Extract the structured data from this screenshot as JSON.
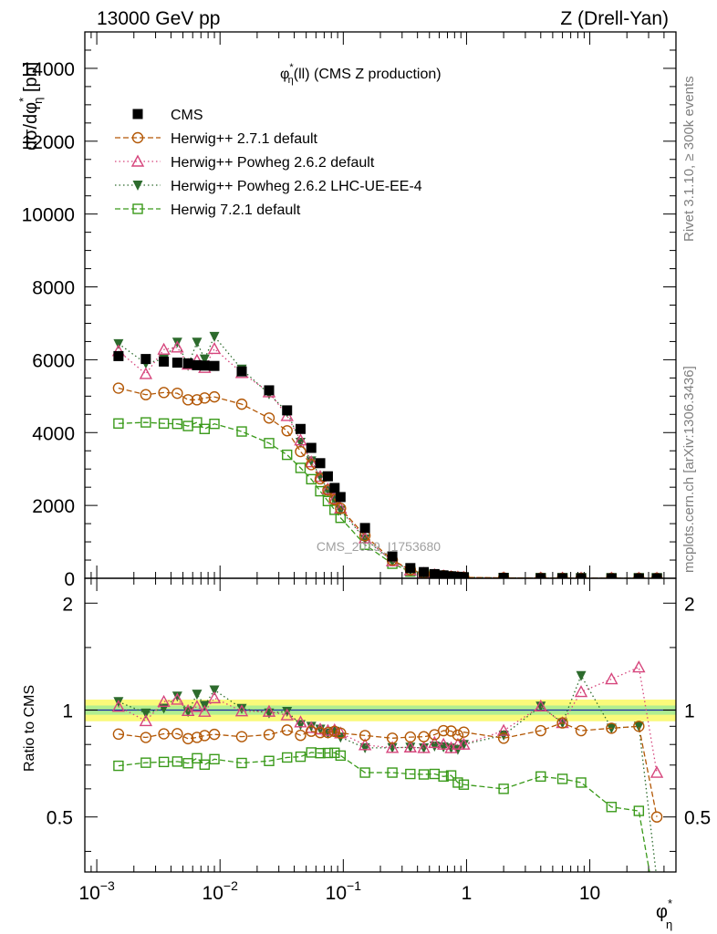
{
  "chart_data": {
    "type": "scatter",
    "header_left": "13000 GeV pp",
    "header_right": "Z (Drell-Yan)",
    "title": "φ*η(ll) (CMS Z production)",
    "title_parts": {
      "phi": "φ",
      "sup": "*",
      "sub": "η",
      "rest": "(ll) (CMS Z production)"
    },
    "ylabel_main": "dσ/dφ*η [pb]",
    "ylabel_main_parts": {
      "pre": "dσ/dφ",
      "sup": "*",
      "sub": "η",
      "post": " [pb]"
    },
    "ylabel_ratio": "Ratio to CMS",
    "xlabel": "φ*η",
    "xlabel_parts": {
      "phi": "φ",
      "sup": "*",
      "sub": "η"
    },
    "watermark": "CMS_2019_I1753680",
    "side_top": "Rivet 3.1.10, ≥ 300k events",
    "side_bottom": "mcplots.cern.ch [arXiv:1306.3436]",
    "xscale": "log",
    "xlim": [
      0.0008,
      50
    ],
    "ylim_main": [
      0,
      15000
    ],
    "ylim_ratio": [
      0.35,
      2.35
    ],
    "ratio_scale": "log",
    "x_ticks": [
      {
        "v": 0.001,
        "base": "10",
        "exp": "−3"
      },
      {
        "v": 0.01,
        "base": "10",
        "exp": "−2"
      },
      {
        "v": 0.1,
        "base": "10",
        "exp": "−1"
      },
      {
        "v": 1,
        "label": "1"
      },
      {
        "v": 10,
        "label": "10"
      }
    ],
    "y_ticks_main": [
      {
        "v": 0,
        "label": "0"
      },
      {
        "v": 2000,
        "label": "2000"
      },
      {
        "v": 4000,
        "label": "4000"
      },
      {
        "v": 6000,
        "label": "6000"
      },
      {
        "v": 8000,
        "label": "8000"
      },
      {
        "v": 10000,
        "label": "10000"
      },
      {
        "v": 12000,
        "label": "12000"
      },
      {
        "v": 14000,
        "label": "14000"
      }
    ],
    "y_ticks_ratio": [
      {
        "v": 0.5,
        "label": "0.5"
      },
      {
        "v": 1,
        "label": "1"
      },
      {
        "v": 2,
        "label": "2"
      }
    ],
    "bands": {
      "inner": 0.03,
      "outer": 0.07,
      "inner_color": "#b0ee90",
      "outer_color": "#fafa7a"
    },
    "legend": [
      "CMS",
      "Herwig++ 2.7.1 default",
      "Herwig++ Powheg 2.6.2 default",
      "Herwig++ Powheg 2.6.2 LHC-UE-EE-4",
      "Herwig 7.2.1 default"
    ],
    "x": [
      0.0015,
      0.0025,
      0.0035,
      0.0045,
      0.0055,
      0.0065,
      0.0075,
      0.009,
      0.015,
      0.025,
      0.035,
      0.045,
      0.055,
      0.065,
      0.075,
      0.085,
      0.095,
      0.15,
      0.25,
      0.35,
      0.45,
      0.55,
      0.65,
      0.75,
      0.85,
      0.95,
      2,
      4,
      6,
      8.5,
      15,
      25,
      35
    ],
    "series": [
      {
        "name": "CMS",
        "color": "#000000",
        "marker": "square-filled",
        "line": "none",
        "values": [
          6100,
          6020,
          5950,
          5920,
          5900,
          5850,
          5840,
          5830,
          5680,
          5160,
          4610,
          4100,
          3580,
          3160,
          2800,
          2480,
          2230,
          1380,
          600,
          280,
          170,
          115,
          80,
          55,
          40,
          30,
          12,
          4,
          2.5,
          1.6,
          0.9,
          0.5,
          0.3
        ]
      },
      {
        "name": "Herwig++ 2.7.1 default",
        "color": "#b35806",
        "marker": "circle-open",
        "line": "6 3",
        "values": [
          5220,
          5040,
          5100,
          5080,
          4900,
          4900,
          4950,
          4980,
          4780,
          4400,
          4050,
          3480,
          3120,
          2730,
          2420,
          2160,
          1920,
          1170,
          500,
          235,
          143,
          98,
          70,
          48,
          34,
          26,
          10,
          3.5,
          2.3,
          1.4,
          0.8,
          0.45,
          0.15
        ]
      },
      {
        "name": "Herwig++ Powheg 2.6.2 default",
        "color": "#d6457c",
        "marker": "triangle-open",
        "line": "1.5 3",
        "values": [
          6240,
          5610,
          6280,
          6340,
          5870,
          5980,
          5780,
          6300,
          5640,
          5110,
          4460,
          3790,
          3190,
          2790,
          2450,
          2180,
          1920,
          1100,
          470,
          220,
          133,
          93,
          64,
          43,
          32,
          24,
          10.5,
          4.1,
          2.3,
          1.8,
          1.1,
          0.66,
          0.2
        ]
      },
      {
        "name": "Herwig++ Powheg 2.6.2 LHC-UE-EE-4",
        "color": "#2d6b2d",
        "marker": "triangle-down-filled",
        "line": "1.5 3",
        "values": [
          6440,
          5900,
          6020,
          6480,
          5840,
          6480,
          6020,
          6640,
          5740,
          5060,
          4570,
          3730,
          3220,
          2790,
          2410,
          2160,
          1870,
          1080,
          470,
          220,
          133,
          91,
          63,
          43,
          31,
          24,
          10.2,
          4.1,
          2.3,
          2.0,
          0.8,
          0.45,
          0.1
        ]
      },
      {
        "name": "Herwig 7.2.1 default",
        "color": "#3a9a1a",
        "marker": "square-open",
        "line": "6 3",
        "values": [
          4250,
          4280,
          4250,
          4240,
          4180,
          4280,
          4100,
          4240,
          4030,
          3710,
          3390,
          3030,
          2720,
          2390,
          2120,
          1880,
          1660,
          920,
          400,
          185,
          112,
          76,
          52,
          36,
          25,
          18.5,
          7.2,
          2.6,
          1.6,
          1.0,
          0.48,
          0.26,
          0.08
        ]
      }
    ]
  }
}
